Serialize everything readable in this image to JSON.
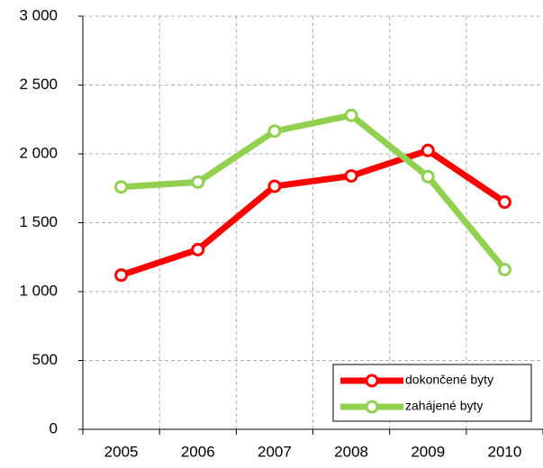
{
  "chart_data": {
    "type": "line",
    "categories": [
      "2005",
      "2006",
      "2007",
      "2008",
      "2009",
      "2010"
    ],
    "series": [
      {
        "name": "dokončené byty",
        "color": "#ff0000",
        "values": [
          1120,
          1305,
          1765,
          1840,
          2025,
          1650
        ]
      },
      {
        "name": "zahájené byty",
        "color": "#92d050",
        "values": [
          1760,
          1795,
          2165,
          2280,
          1835,
          1160
        ]
      }
    ],
    "ylim": [
      0,
      3000
    ],
    "yticks": [
      0,
      500,
      {
        "value": 1000,
        "label": "1 000"
      },
      {
        "value": 1500,
        "label": "1 500"
      },
      {
        "value": 2000,
        "label": "2 000"
      },
      {
        "value": 2500,
        "label": "2 500"
      },
      {
        "value": 3000,
        "label": "3 000"
      }
    ],
    "grid": true,
    "legend": "lower right"
  }
}
